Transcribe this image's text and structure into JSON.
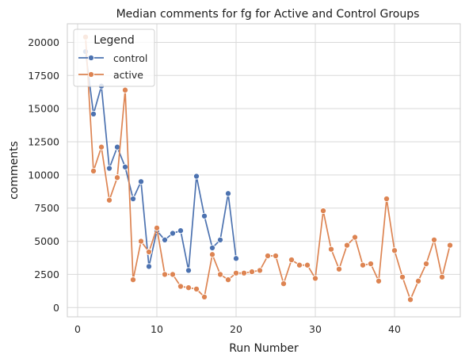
{
  "chart_data": {
    "type": "line",
    "title": "Median comments for fg for Active and Control Groups",
    "xlabel": "Run Number",
    "ylabel": "comments",
    "xlim": [
      -1.3,
      48.3
    ],
    "ylim": [
      -700,
      21400
    ],
    "x_ticks": [
      0,
      10,
      20,
      30,
      40
    ],
    "y_ticks": [
      0,
      2500,
      5000,
      7500,
      10000,
      12500,
      15000,
      17500,
      20000
    ],
    "grid": true,
    "legend": {
      "title": "Legend",
      "position": "top-left"
    },
    "series": [
      {
        "name": "control",
        "color": "#4c72b0",
        "marker": "circle",
        "points": [
          [
            1,
            19300
          ],
          [
            2,
            14600
          ],
          [
            3,
            16700
          ],
          [
            4,
            10500
          ],
          [
            5,
            12100
          ],
          [
            6,
            10600
          ],
          [
            7,
            8200
          ],
          [
            8,
            9500
          ],
          [
            9,
            3100
          ],
          [
            10,
            5800
          ],
          [
            11,
            5100
          ],
          [
            12,
            5600
          ],
          [
            13,
            5800
          ],
          [
            14,
            2800
          ],
          [
            15,
            9900
          ],
          [
            16,
            6900
          ],
          [
            17,
            4500
          ],
          [
            18,
            5100
          ],
          [
            19,
            8600
          ],
          [
            20,
            3700
          ]
        ]
      },
      {
        "name": "active",
        "color": "#dd8452",
        "marker": "circle",
        "points": [
          [
            1,
            20400
          ],
          [
            2,
            10300
          ],
          [
            3,
            12100
          ],
          [
            4,
            8100
          ],
          [
            5,
            9800
          ],
          [
            6,
            16400
          ],
          [
            7,
            2100
          ],
          [
            8,
            5000
          ],
          [
            9,
            4200
          ],
          [
            10,
            6000
          ],
          [
            11,
            2500
          ],
          [
            12,
            2500
          ],
          [
            13,
            1600
          ],
          [
            14,
            1500
          ],
          [
            15,
            1400
          ],
          [
            16,
            800
          ],
          [
            17,
            4000
          ],
          [
            18,
            2500
          ],
          [
            19,
            2100
          ],
          [
            20,
            2600
          ],
          [
            21,
            2600
          ],
          [
            22,
            2700
          ],
          [
            23,
            2800
          ],
          [
            24,
            3900
          ],
          [
            25,
            3900
          ],
          [
            26,
            1800
          ],
          [
            27,
            3600
          ],
          [
            28,
            3200
          ],
          [
            29,
            3200
          ],
          [
            30,
            2200
          ],
          [
            31,
            7300
          ],
          [
            32,
            4400
          ],
          [
            33,
            2900
          ],
          [
            34,
            4700
          ],
          [
            35,
            5300
          ],
          [
            36,
            3200
          ],
          [
            37,
            3300
          ],
          [
            38,
            2000
          ],
          [
            39,
            8200
          ],
          [
            40,
            4300
          ],
          [
            41,
            2300
          ],
          [
            42,
            600
          ],
          [
            43,
            2000
          ],
          [
            44,
            3300
          ],
          [
            45,
            5100
          ],
          [
            46,
            2300
          ],
          [
            47,
            4700
          ]
        ]
      }
    ]
  }
}
